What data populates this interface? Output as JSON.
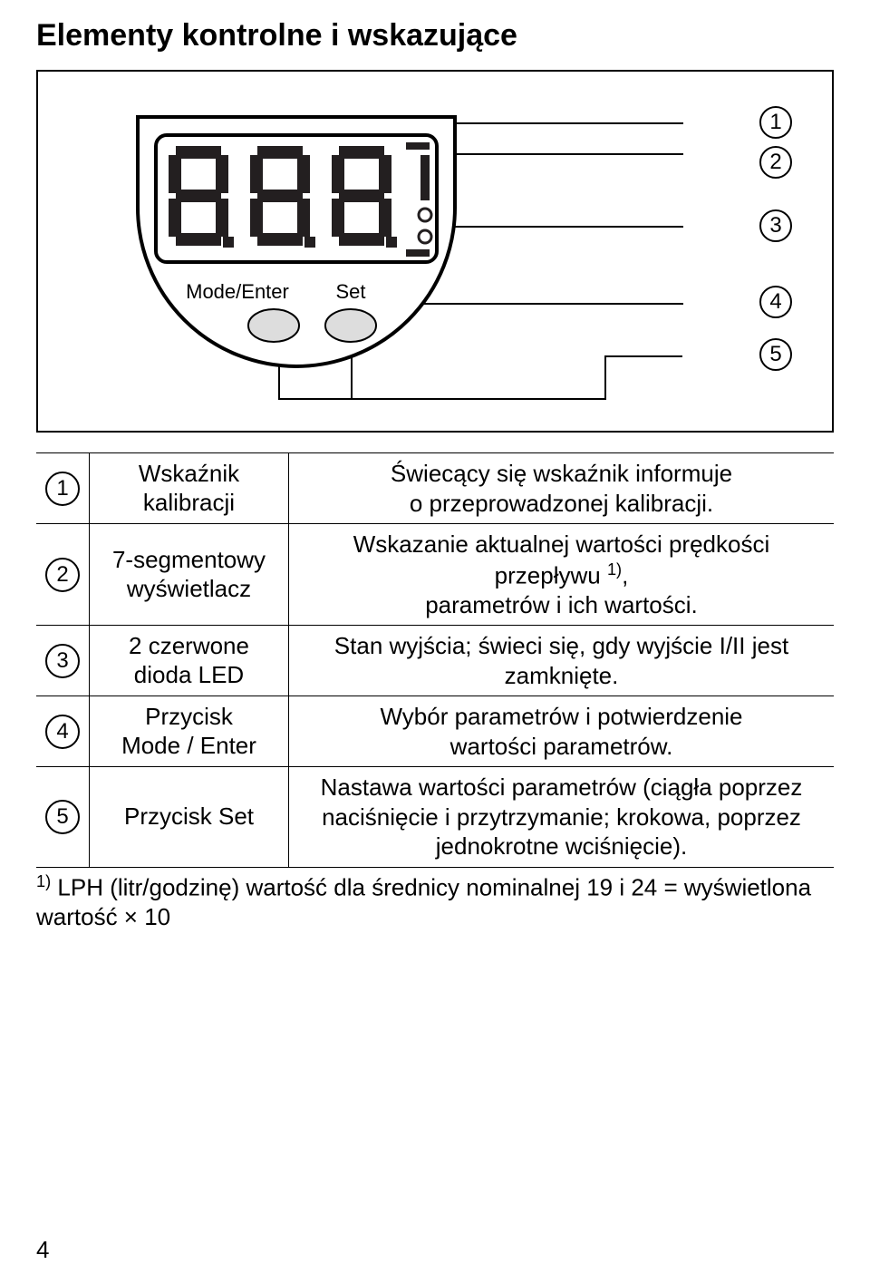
{
  "heading": "Elementy kontrolne i wskazujące",
  "figure": {
    "button_left": "Mode/Enter",
    "button_right": "Set",
    "callout_numbers": [
      "1",
      "2",
      "3",
      "4",
      "5"
    ],
    "colors": {
      "border": "#000000",
      "bg": "#ffffff",
      "display_body": "#ffffff",
      "segment": "#231f20",
      "segment_off": "#e6e6e6"
    }
  },
  "legend": [
    {
      "num": "1",
      "name": "Wskaźnik\nkalibracji",
      "desc": "Świecący się wskaźnik informuje\no przeprowadzonej kalibracji."
    },
    {
      "num": "2",
      "name": "7-segmentowy\nwyświetlacz",
      "desc": "Wskazanie aktualnej wartości prędkości przepływu 1),\nparametrów i ich wartości."
    },
    {
      "num": "3",
      "name": "2 czerwone\ndioda LED",
      "desc": "Stan wyjścia; świeci się, gdy wyjście I/II jest\nzamknięte."
    },
    {
      "num": "4",
      "name": "Przycisk\nMode / Enter",
      "desc": "Wybór parametrów i potwierdzenie\nwartości parametrów."
    },
    {
      "num": "5",
      "name": "Przycisk Set",
      "desc": "Nastawa wartości parametrów (ciągła poprzez\nnaciśnięcie i przytrzymanie;  krokowa, poprzez\njednokrotne wciśnięcie)."
    }
  ],
  "footnote_prefix": "1)",
  "footnote": " LPH (litr/godzinę) wartość dla średnicy nominalnej 19 i 24 = wyświetlona wartość × 10",
  "page_number": "4"
}
